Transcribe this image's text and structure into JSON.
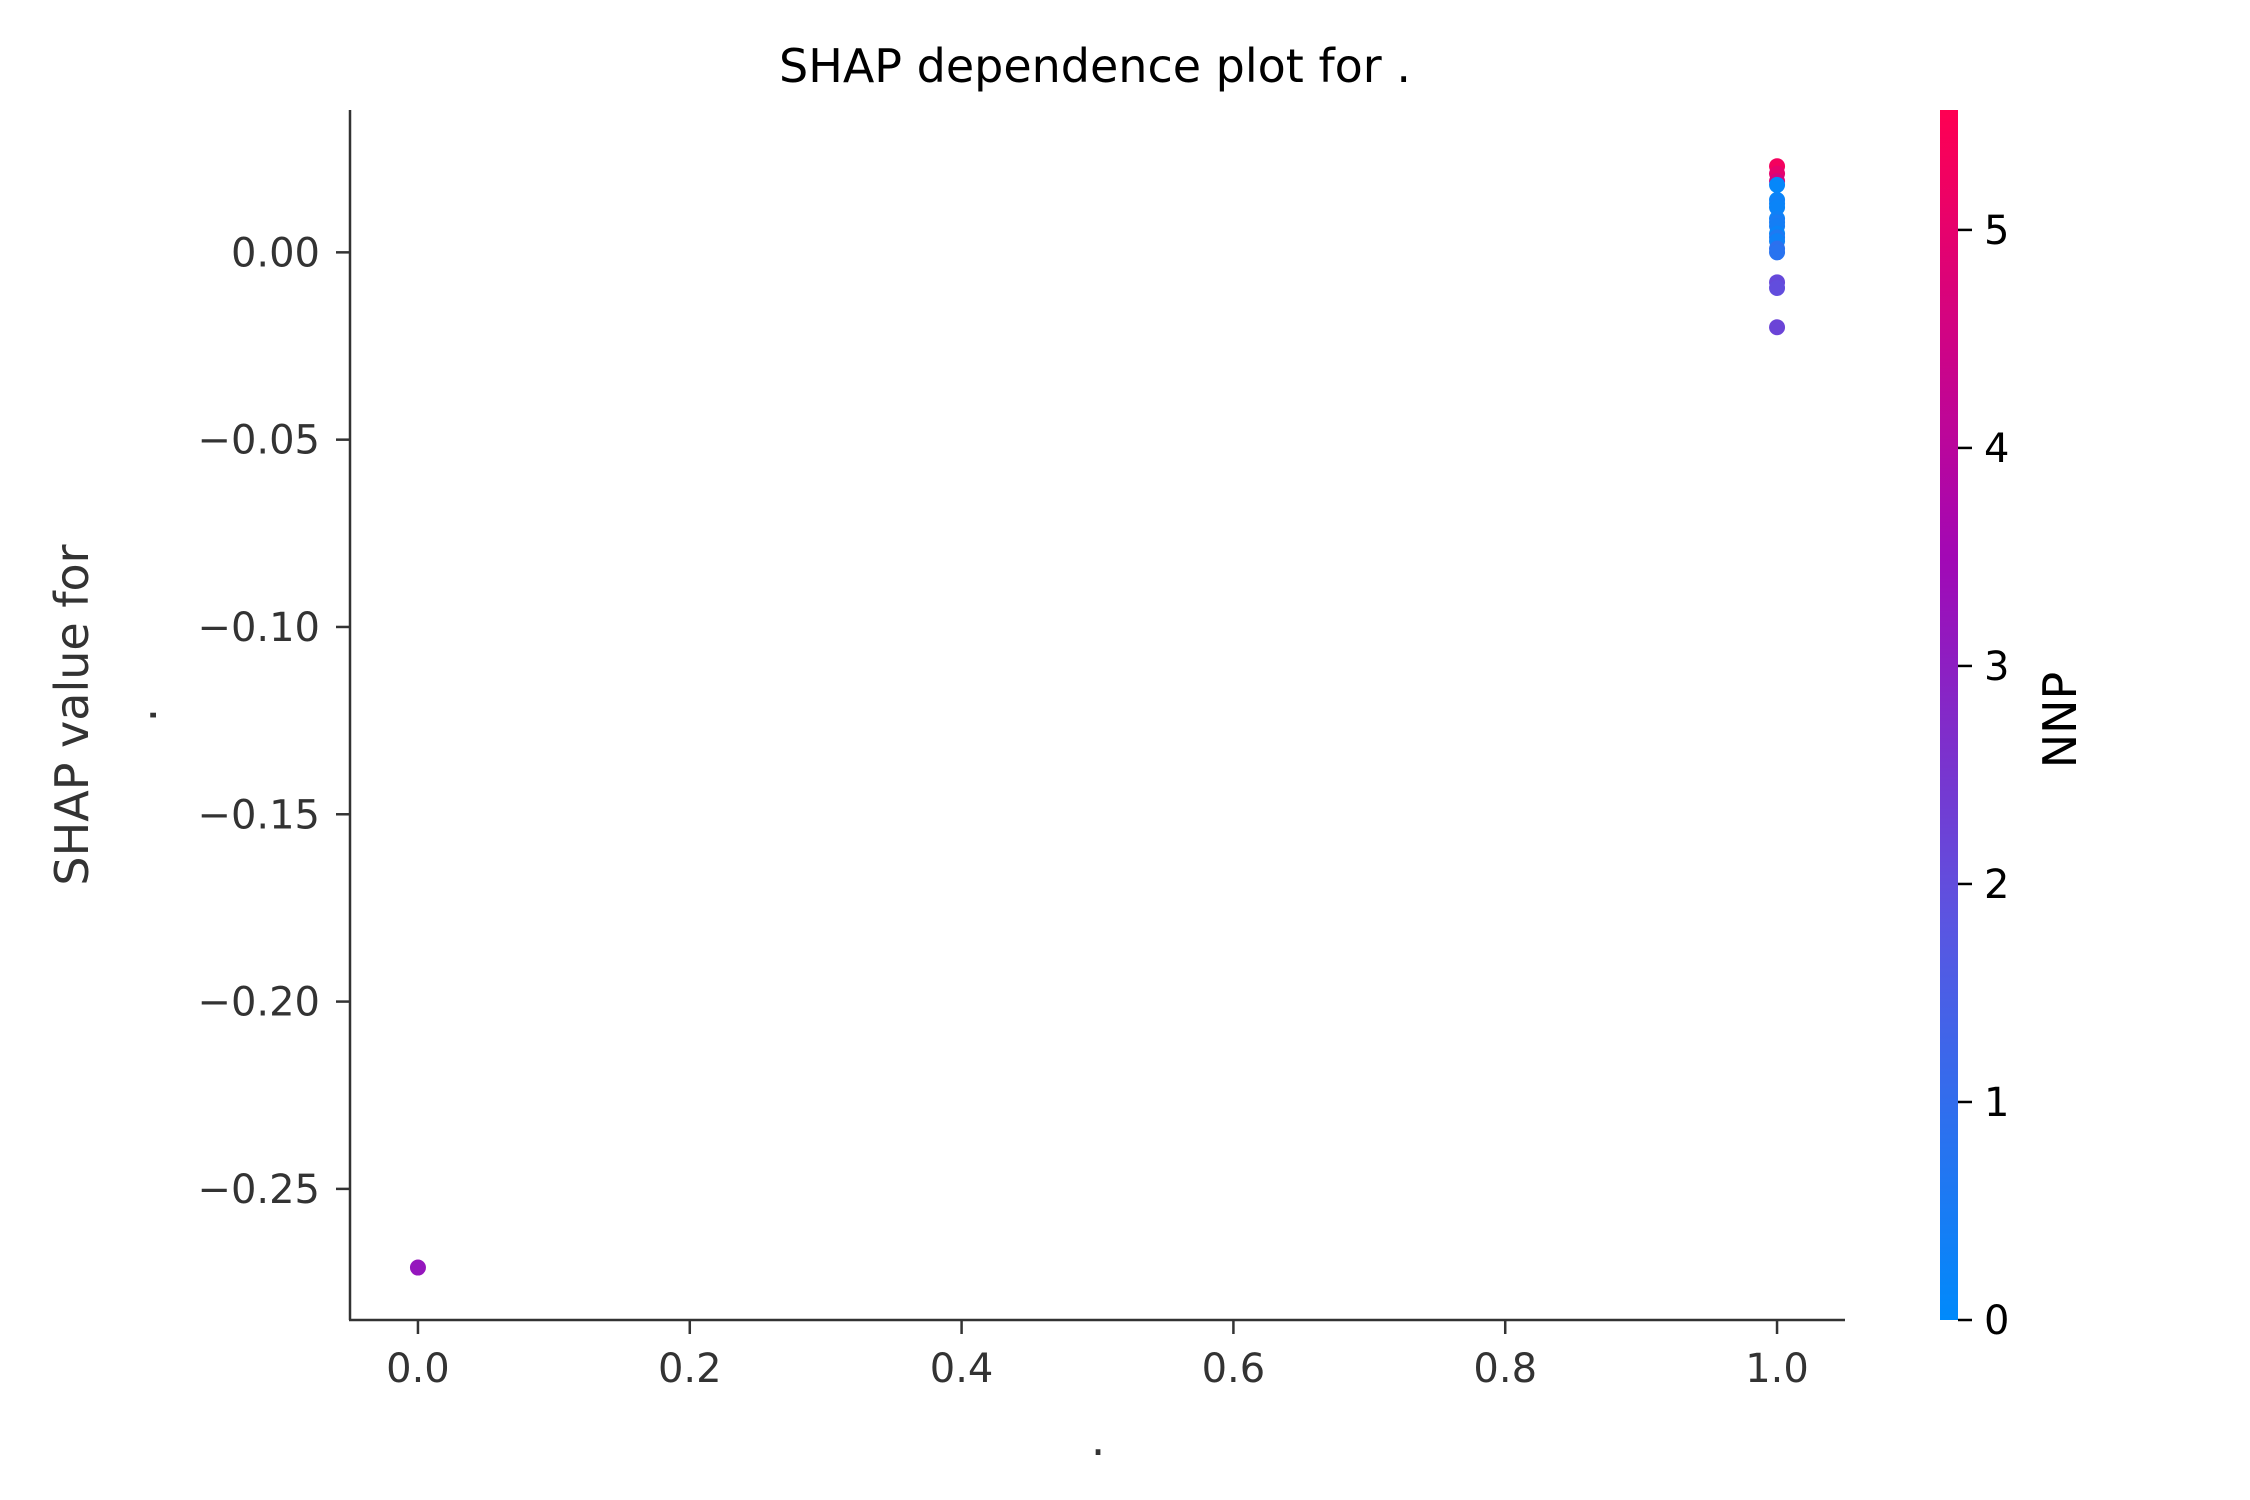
{
  "chart_data": {
    "type": "scatter",
    "title": "SHAP dependence plot for .",
    "xlabel": ".",
    "ylabel_line1": "SHAP value for",
    "ylabel_line2": ".",
    "xlim": [
      -0.05,
      1.05
    ],
    "ylim": [
      -0.285,
      0.038
    ],
    "xticks": [
      0.0,
      0.2,
      0.4,
      0.6,
      0.8,
      1.0
    ],
    "xtick_labels": [
      "0.0",
      "0.2",
      "0.4",
      "0.6",
      "0.8",
      "1.0"
    ],
    "yticks": [
      0.0,
      -0.05,
      -0.1,
      -0.15,
      -0.2,
      -0.25
    ],
    "ytick_labels": [
      "0.00",
      "−0.05",
      "−0.10",
      "−0.15",
      "−0.20",
      "−0.25"
    ],
    "grid": false,
    "colorbar": {
      "label": "NNP",
      "range": [
        0,
        5.55
      ],
      "ticks": [
        0,
        1,
        2,
        3,
        4,
        5
      ],
      "tick_labels": [
        "0",
        "1",
        "2",
        "3",
        "4",
        "5"
      ],
      "colormap_stops": [
        "#008afb",
        "#5b55e1",
        "#a208b5",
        "#ff0052"
      ]
    },
    "points": [
      {
        "x": 0.0,
        "y": -0.271,
        "c": 3.2
      },
      {
        "x": 1.0,
        "y": 0.023,
        "c": 5.3
      },
      {
        "x": 1.0,
        "y": 0.021,
        "c": 5.0
      },
      {
        "x": 1.0,
        "y": 0.019,
        "c": 4.6
      },
      {
        "x": 1.0,
        "y": 0.018,
        "c": 0.1
      },
      {
        "x": 1.0,
        "y": 0.014,
        "c": 0.2
      },
      {
        "x": 1.0,
        "y": 0.013,
        "c": 0.3
      },
      {
        "x": 1.0,
        "y": 0.012,
        "c": 0.2
      },
      {
        "x": 1.0,
        "y": 0.009,
        "c": 0.3
      },
      {
        "x": 1.0,
        "y": 0.008,
        "c": 0.5
      },
      {
        "x": 1.0,
        "y": 0.007,
        "c": 0.4
      },
      {
        "x": 1.0,
        "y": 0.005,
        "c": 0.2
      },
      {
        "x": 1.0,
        "y": 0.004,
        "c": 0.6
      },
      {
        "x": 1.0,
        "y": 0.003,
        "c": 0.3
      },
      {
        "x": 1.0,
        "y": 0.001,
        "c": 0.9
      },
      {
        "x": 1.0,
        "y": 0.0,
        "c": 0.8
      },
      {
        "x": 1.0,
        "y": -0.008,
        "c": 2.1
      },
      {
        "x": 1.0,
        "y": -0.0095,
        "c": 2.0
      },
      {
        "x": 1.0,
        "y": -0.02,
        "c": 2.2
      }
    ]
  }
}
